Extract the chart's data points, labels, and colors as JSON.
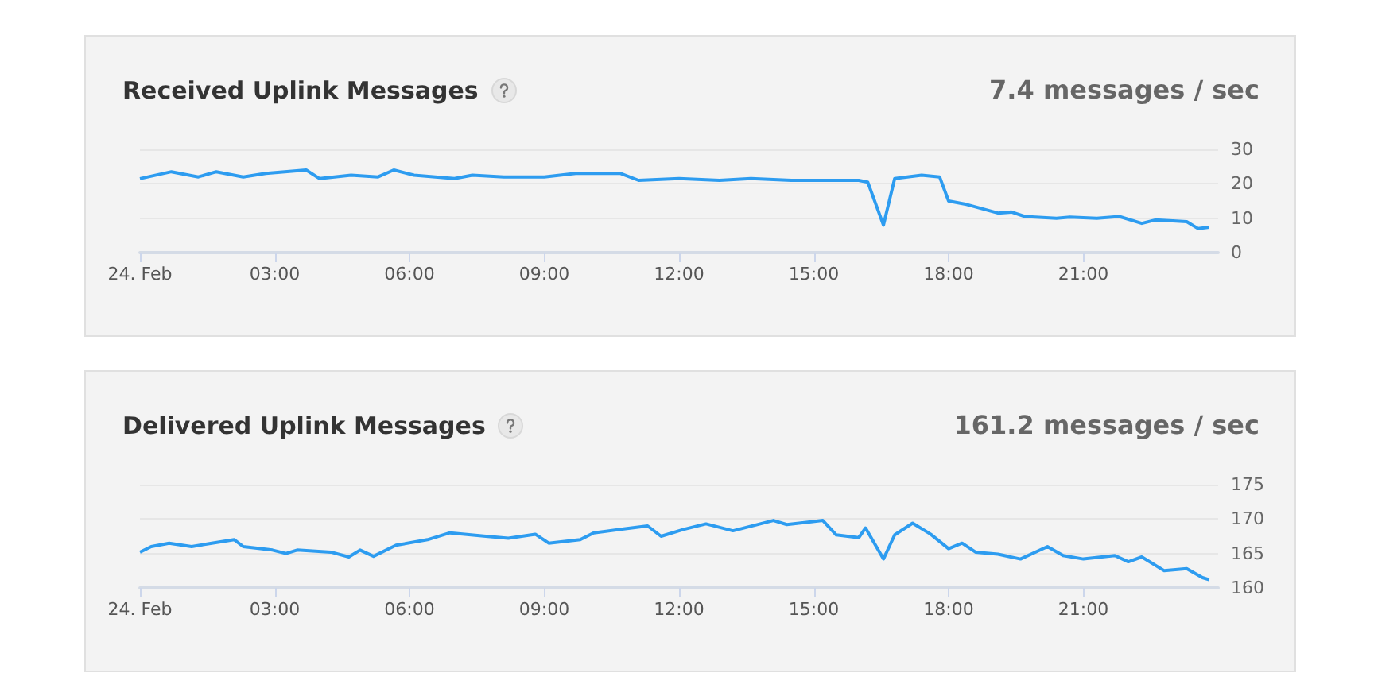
{
  "chart_data": [
    {
      "type": "line",
      "title": "Received Uplink Messages",
      "annotations": [
        "7.4 messages / sec"
      ],
      "grid": "y",
      "x": [
        0,
        0.7,
        1.3,
        1.7,
        2.3,
        2.8,
        3.7,
        4.0,
        4.7,
        5.3,
        5.65,
        6.1,
        7.0,
        7.4,
        8.1,
        9.0,
        9.7,
        10.7,
        11.1,
        12.0,
        12.9,
        13.6,
        14.5,
        15.2,
        16.0,
        16.2,
        16.55,
        16.8,
        17.4,
        17.8,
        18.0,
        18.4,
        19.1,
        19.4,
        19.7,
        20.4,
        20.7,
        21.3,
        21.8,
        22.3,
        22.6,
        23.3,
        23.55,
        23.8
      ],
      "series": [
        {
          "color": "#2d9cf0",
          "values": [
            21.5,
            23.5,
            22,
            23.5,
            22,
            23,
            24,
            21.5,
            22.5,
            22,
            24,
            22.5,
            21.5,
            22.5,
            22,
            22,
            23,
            23,
            21,
            21.5,
            21,
            21.5,
            21,
            21,
            21,
            20.5,
            8,
            21.5,
            22.5,
            22,
            15,
            14,
            11.5,
            11.8,
            10.5,
            10,
            10.3,
            10,
            10.5,
            8.5,
            9.5,
            9,
            7,
            7.4
          ]
        }
      ],
      "xlim": [
        0,
        24
      ],
      "xticks": [
        {
          "value": 0,
          "label": "24. Feb"
        },
        {
          "value": 3,
          "label": "03:00"
        },
        {
          "value": 6,
          "label": "06:00"
        },
        {
          "value": 9,
          "label": "09:00"
        },
        {
          "value": 12,
          "label": "12:00"
        },
        {
          "value": 15,
          "label": "15:00"
        },
        {
          "value": 18,
          "label": "18:00"
        },
        {
          "value": 21,
          "label": "21:00"
        }
      ],
      "ylim": [
        0,
        30
      ],
      "yticks": [
        0,
        10,
        20,
        30
      ]
    },
    {
      "type": "line",
      "title": "Delivered Uplink Messages",
      "annotations": [
        "161.2 messages / sec"
      ],
      "grid": "y",
      "x": [
        0,
        0.25,
        0.65,
        1.15,
        1.6,
        2.1,
        2.3,
        2.95,
        3.25,
        3.5,
        4.25,
        4.65,
        4.9,
        5.2,
        5.7,
        6.4,
        6.9,
        7.7,
        8.2,
        8.8,
        9.1,
        9.8,
        10.1,
        10.7,
        11.3,
        11.6,
        12.1,
        12.6,
        13.2,
        14.1,
        14.4,
        15.2,
        15.5,
        16.0,
        16.15,
        16.55,
        16.8,
        17.2,
        17.6,
        18.0,
        18.3,
        18.6,
        19.1,
        19.6,
        20.2,
        20.55,
        21.0,
        21.7,
        22.0,
        22.3,
        22.8,
        23.3,
        23.65,
        23.8
      ],
      "series": [
        {
          "color": "#2d9cf0",
          "values": [
            165.2,
            166,
            166.5,
            166,
            166.5,
            167,
            166,
            165.5,
            165,
            165.5,
            165.2,
            164.5,
            165.5,
            164.6,
            166.2,
            167,
            168,
            167.5,
            167.2,
            167.8,
            166.5,
            167,
            168,
            168.5,
            169,
            167.5,
            168.5,
            169.3,
            168.3,
            169.8,
            169.2,
            169.8,
            167.7,
            167.3,
            168.7,
            164.2,
            167.7,
            169.4,
            167.8,
            165.7,
            166.5,
            165.2,
            164.9,
            164.2,
            166,
            164.7,
            164.2,
            164.7,
            163.8,
            164.5,
            162.5,
            162.8,
            161.5,
            161.2
          ]
        }
      ],
      "xlim": [
        0,
        24
      ],
      "xticks": [
        {
          "value": 0,
          "label": "24. Feb"
        },
        {
          "value": 3,
          "label": "03:00"
        },
        {
          "value": 6,
          "label": "06:00"
        },
        {
          "value": 9,
          "label": "09:00"
        },
        {
          "value": 12,
          "label": "12:00"
        },
        {
          "value": 15,
          "label": "15:00"
        },
        {
          "value": 18,
          "label": "18:00"
        },
        {
          "value": 21,
          "label": "21:00"
        }
      ],
      "ylim": [
        160,
        175
      ],
      "yticks": [
        160,
        165,
        170,
        175
      ]
    }
  ]
}
